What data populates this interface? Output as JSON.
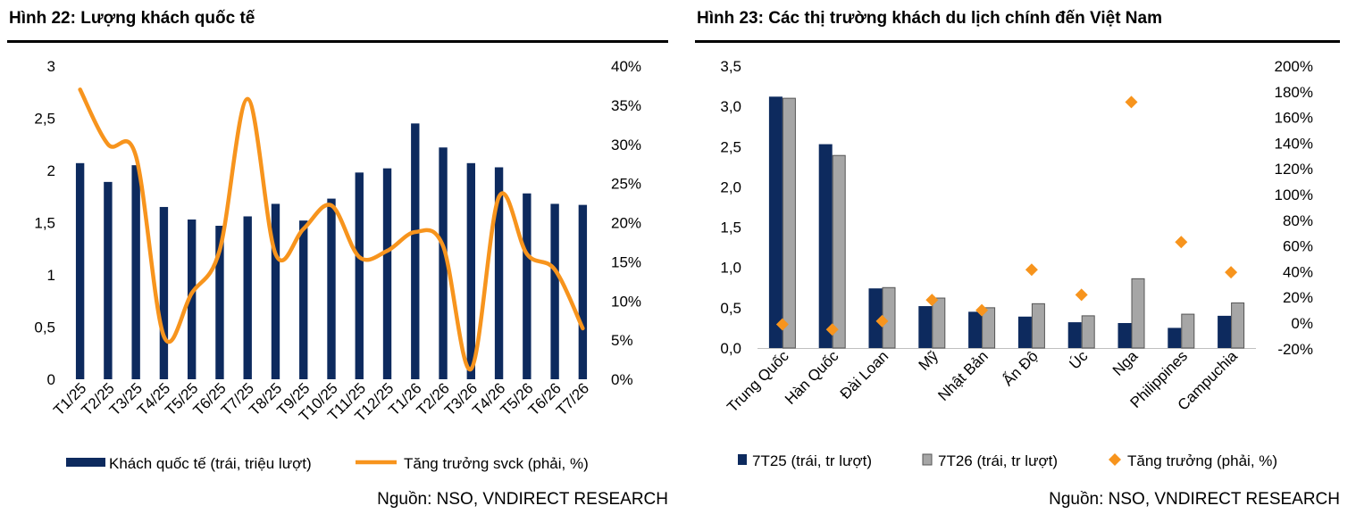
{
  "colors": {
    "navy": "#0d2a5e",
    "orange": "#f7941d",
    "gray": "#a6a6a6",
    "gray_border": "#555555"
  },
  "charts": [
    {
      "figure_title": "Hình 22: Lượng khách quốc tế",
      "source": "Nguồn: NSO, VNDIRECT RESEARCH",
      "chart_data": {
        "type": "bar+line",
        "categories": [
          "T1/25",
          "T2/25",
          "T3/25",
          "T4/25",
          "T5/25",
          "T6/25",
          "T7/25",
          "T8/25",
          "T9/25",
          "T10/25",
          "T11/25",
          "T12/25",
          "T1/26",
          "T2/26",
          "T3/26",
          "T4/26",
          "T5/26",
          "T6/26",
          "T7/26"
        ],
        "series": [
          {
            "name": "Khách quốc tế (trái, triệu lượt)",
            "type": "bar",
            "axis": "left",
            "color": "#0d2a5e",
            "values": [
              2.07,
              1.89,
              2.05,
              1.65,
              1.53,
              1.47,
              1.56,
              1.68,
              1.52,
              1.73,
              1.98,
              2.02,
              2.45,
              2.22,
              2.07,
              2.03,
              1.78,
              1.68,
              1.67
            ]
          },
          {
            "name": "Tăng trưởng svck (phải, %)",
            "type": "line",
            "axis": "right",
            "color": "#f7941d",
            "values": [
              37,
              30,
              28.5,
              5.5,
              11,
              16.5,
              35.8,
              16,
              19.2,
              22.2,
              15.6,
              16.4,
              18.8,
              17,
              1.3,
              23.3,
              16,
              14,
              6.5
            ]
          }
        ],
        "y_left": {
          "min": 0,
          "max": 3,
          "ticks": [
            "0",
            "0,5",
            "1",
            "1,5",
            "2",
            "2,5",
            "3"
          ]
        },
        "y_right": {
          "min": 0,
          "max": 40,
          "ticks": [
            "0%",
            "5%",
            "10%",
            "15%",
            "20%",
            "25%",
            "30%",
            "35%",
            "40%"
          ]
        },
        "legend": "bottom",
        "grid": false
      }
    },
    {
      "figure_title": "Hình 23: Các thị trường khách du lịch chính đến Việt Nam",
      "source": "Nguồn: NSO, VNDIRECT RESEARCH",
      "chart_data": {
        "type": "bar+scatter",
        "categories": [
          "Trung Quốc",
          "Hàn Quốc",
          "Đài Loan",
          "Mỹ",
          "Nhật Bản",
          "Ấn Độ",
          "Úc",
          "Nga",
          "Philippines",
          "Campuchia"
        ],
        "series": [
          {
            "name": "7T25 (trái, tr lượt)",
            "type": "bar",
            "axis": "left",
            "color": "#0d2a5e",
            "values": [
              3.12,
              2.53,
              0.74,
              0.52,
              0.45,
              0.39,
              0.32,
              0.31,
              0.25,
              0.4
            ]
          },
          {
            "name": "7T26 (trái, tr lượt)",
            "type": "bar",
            "axis": "left",
            "color": "#a6a6a6",
            "values": [
              3.1,
              2.39,
              0.75,
              0.62,
              0.5,
              0.55,
              0.4,
              0.86,
              0.42,
              0.56
            ]
          },
          {
            "name": "Tăng trưởng (phải, %)",
            "type": "scatter",
            "axis": "right",
            "color": "#f7941d",
            "values": [
              -1,
              -5,
              1.5,
              18,
              10,
              41.5,
              22,
              172,
              63,
              39.5
            ]
          }
        ],
        "y_left": {
          "min": 0,
          "max": 3.5,
          "ticks": [
            "0,0",
            "0,5",
            "1,0",
            "1,5",
            "2,0",
            "2,5",
            "3,0",
            "3,5"
          ]
        },
        "y_right": {
          "min": -20,
          "max": 200,
          "ticks": [
            "-20%",
            "0%",
            "20%",
            "40%",
            "60%",
            "80%",
            "100%",
            "120%",
            "140%",
            "160%",
            "180%",
            "200%"
          ]
        },
        "legend": "bottom",
        "grid": false
      }
    }
  ]
}
